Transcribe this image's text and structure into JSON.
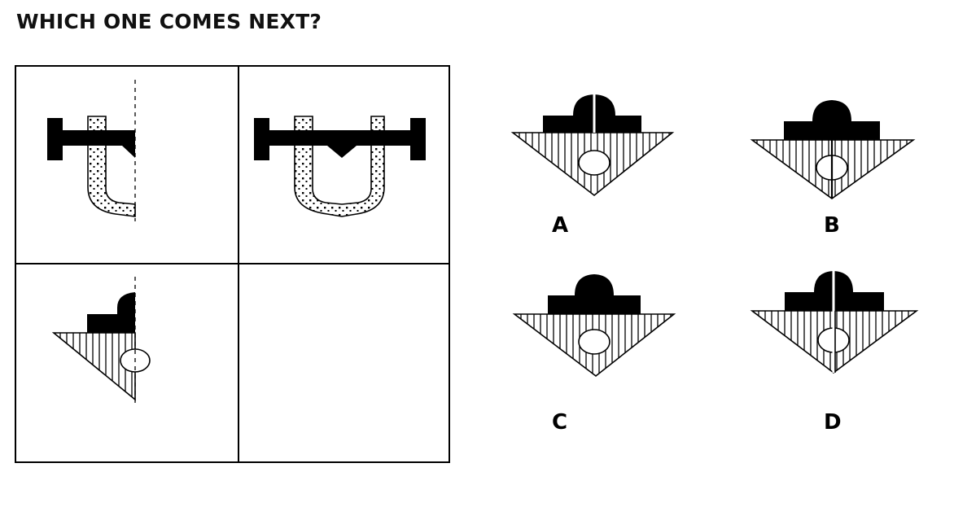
{
  "title": "WHICH ONE COMES NEXT?",
  "options": [
    {
      "label": "A"
    },
    {
      "label": "B"
    },
    {
      "label": "C"
    },
    {
      "label": "D"
    }
  ]
}
